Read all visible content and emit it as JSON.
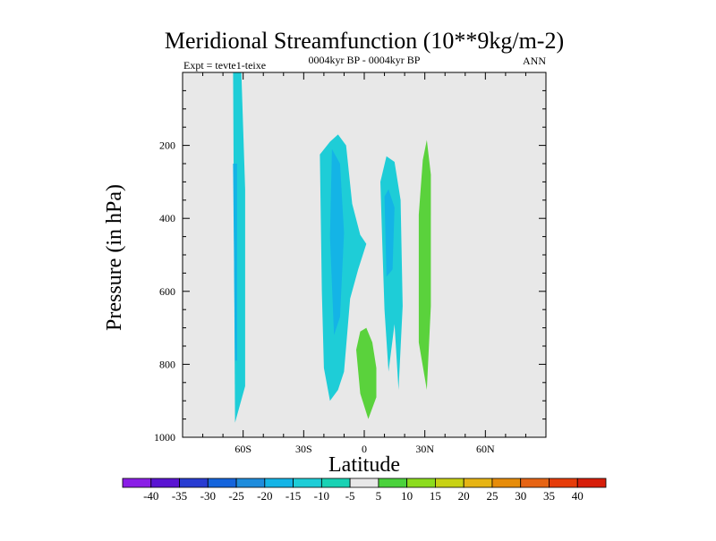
{
  "chart_data": {
    "type": "filled-contour",
    "title": "Meridional Streamfunction (10**9kg/m-2)",
    "left_string": "Expt = tevte1-teixe",
    "center_string": "0004kyr BP - 0004kyr BP",
    "right_string": "ANN",
    "xlabel": "Latitude",
    "ylabel": "Pressure (in hPa)",
    "xlim": [
      -90,
      90
    ],
    "ylim": [
      0,
      1000
    ],
    "y_inverted": true,
    "x_ticks": [
      {
        "value": -60,
        "label": "60S"
      },
      {
        "value": -30,
        "label": "30S"
      },
      {
        "value": 0,
        "label": "0"
      },
      {
        "value": 30,
        "label": "30N"
      },
      {
        "value": 60,
        "label": "60N"
      }
    ],
    "y_ticks": [
      {
        "value": 200,
        "label": "200"
      },
      {
        "value": 400,
        "label": "400"
      },
      {
        "value": 600,
        "label": "600"
      },
      {
        "value": 800,
        "label": "800"
      },
      {
        "value": 1000,
        "label": "1000"
      }
    ],
    "background_color": "#e8e8e8",
    "colorbar": {
      "labels": [
        "-40",
        "-35",
        "-30",
        "-25",
        "-20",
        "-15",
        "-10",
        "-5",
        "5",
        "10",
        "15",
        "20",
        "25",
        "30",
        "35",
        "40"
      ],
      "colors": [
        "#8a1ee6",
        "#5a14d2",
        "#283cd2",
        "#1464dc",
        "#1e8cdc",
        "#14b4e6",
        "#1ecdd7",
        "#19d2b4",
        "#e8e8e8",
        "#4bd23c",
        "#8cdc1e",
        "#c8d214",
        "#e6b414",
        "#e68c0a",
        "#e66414",
        "#e63c0a",
        "#d71e0a"
      ]
    },
    "regions": [
      {
        "name": "southern-high-latitude-cell",
        "color": "#1ecdd7",
        "points": [
          [
            -65,
            -20
          ],
          [
            -64,
            960
          ],
          [
            -59,
            860
          ],
          [
            -59,
            320
          ],
          [
            -61,
            -20
          ]
        ]
      },
      {
        "name": "southern-high-latitude-core",
        "color": "#14b4e6",
        "points": [
          [
            -65,
            250
          ],
          [
            -64,
            790
          ],
          [
            -63,
            790
          ],
          [
            -63,
            250
          ]
        ]
      },
      {
        "name": "southern-subtropical-cell",
        "color": "#1ecdd7",
        "points": [
          [
            -22,
            225
          ],
          [
            -21,
            600
          ],
          [
            -20,
            810
          ],
          [
            -17,
            900
          ],
          [
            -13,
            870
          ],
          [
            -10,
            820
          ],
          [
            -7,
            620
          ],
          [
            -3,
            540
          ],
          [
            1,
            470
          ],
          [
            -2,
            445
          ],
          [
            -6,
            360
          ],
          [
            -9,
            200
          ],
          [
            -13,
            170
          ],
          [
            -17,
            190
          ]
        ]
      },
      {
        "name": "southern-subtropical-core",
        "color": "#14b4e6",
        "points": [
          [
            -16,
            210
          ],
          [
            -17,
            450
          ],
          [
            -15,
            720
          ],
          [
            -12,
            670
          ],
          [
            -10,
            440
          ],
          [
            -12,
            250
          ]
        ]
      },
      {
        "name": "equatorial-cell",
        "color": "#1ecdd7",
        "points": [
          [
            8,
            300
          ],
          [
            9,
            480
          ],
          [
            10,
            650
          ],
          [
            12,
            820
          ],
          [
            15,
            690
          ],
          [
            17,
            870
          ],
          [
            19,
            640
          ],
          [
            18,
            350
          ],
          [
            15,
            245
          ],
          [
            11,
            230
          ]
        ]
      },
      {
        "name": "equatorial-core",
        "color": "#14b4e6",
        "points": [
          [
            10,
            340
          ],
          [
            11,
            560
          ],
          [
            14,
            540
          ],
          [
            15,
            370
          ],
          [
            12,
            320
          ]
        ]
      },
      {
        "name": "northern-subtropical-cell",
        "color": "#5ad23c",
        "points": [
          [
            27,
            390
          ],
          [
            27,
            740
          ],
          [
            31,
            870
          ],
          [
            33,
            640
          ],
          [
            33,
            280
          ],
          [
            31,
            185
          ],
          [
            29,
            240
          ]
        ]
      },
      {
        "name": "low-level-equatorial-cell",
        "color": "#5ad23c",
        "points": [
          [
            -4,
            760
          ],
          [
            -2,
            880
          ],
          [
            2,
            950
          ],
          [
            6,
            890
          ],
          [
            6,
            810
          ],
          [
            4,
            740
          ],
          [
            1,
            700
          ],
          [
            -2,
            710
          ]
        ]
      }
    ]
  }
}
